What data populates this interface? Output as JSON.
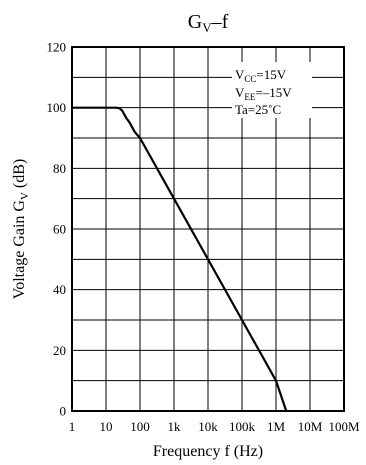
{
  "chart_data": {
    "type": "line",
    "title_main": "G",
    "title_sub": "V",
    "title_tail": "–f",
    "xlabel": "Frequency  f (Hz)",
    "ylabel_main": "Voltage Gain  G",
    "ylabel_sub": "V",
    "ylabel_tail": " (dB)",
    "x_scale": "log",
    "xlim": [
      1,
      100000000
    ],
    "ylim": [
      0,
      120
    ],
    "grid": true,
    "x_ticks": [
      1,
      10,
      100,
      1000,
      10000,
      100000,
      1000000,
      10000000,
      100000000
    ],
    "x_tick_labels": [
      "1",
      "10",
      "100",
      "1k",
      "10k",
      "100k",
      "1M",
      "10M",
      "100M"
    ],
    "y_ticks": [
      0,
      20,
      40,
      60,
      80,
      100,
      120
    ],
    "y_tick_labels": [
      "0",
      "20",
      "40",
      "60",
      "80",
      "100",
      "120"
    ],
    "series": [
      {
        "x": [
          1,
          10,
          20,
          25,
          30,
          40,
          50,
          70,
          100,
          1000,
          10000,
          100000,
          1000000,
          2000000
        ],
        "y": [
          100,
          100,
          100,
          99.8,
          99,
          96.5,
          95,
          92,
          90,
          70,
          50,
          30,
          10,
          0
        ]
      }
    ],
    "annotations": [
      {
        "main": "V",
        "sub": "CC",
        "tail": "=15V"
      },
      {
        "main": "V",
        "sub": "EE",
        "tail": "=–15V"
      },
      {
        "main": "Ta=25˚C",
        "sub": "",
        "tail": ""
      }
    ]
  }
}
